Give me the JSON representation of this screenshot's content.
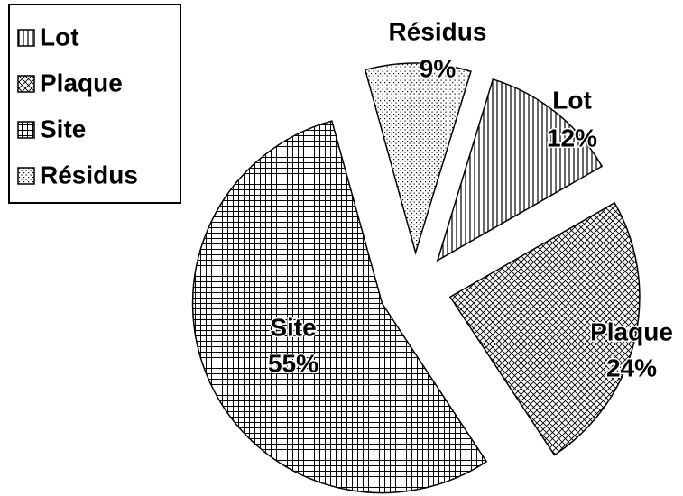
{
  "chart_data": {
    "type": "pie",
    "categories": [
      "Lot",
      "Plaque",
      "Site",
      "Résidus"
    ],
    "values": [
      12,
      24,
      55,
      9
    ],
    "value_labels": [
      "12%",
      "24%",
      "55%",
      "9%"
    ],
    "legend": "top-left"
  }
}
